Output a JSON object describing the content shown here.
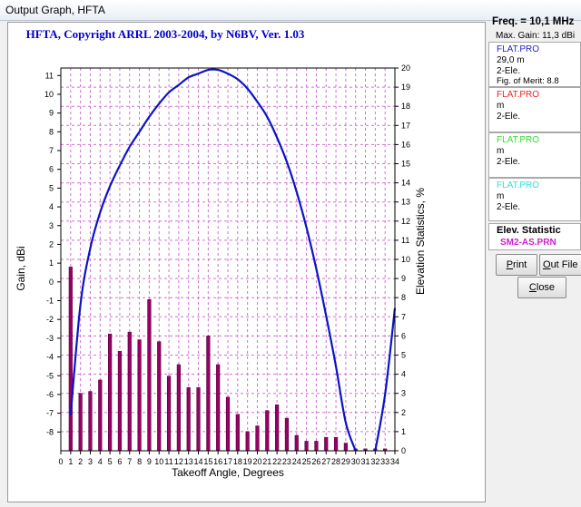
{
  "window": {
    "title": "Output Graph, HFTA"
  },
  "chart_data": {
    "type": "bar",
    "title": "HFTA, Copyright ARRL 2003-2004, by N6BV, Ver. 1.03",
    "xlabel": "Takeoff Angle, Degrees",
    "ylabel": "Gain, dBi",
    "y2label": "Elevation Statistics, %",
    "xlim": [
      0,
      34
    ],
    "ylim": [
      -9,
      11.4
    ],
    "y2lim": [
      0,
      20
    ],
    "grid": true,
    "x_ticks": [
      0,
      1,
      2,
      3,
      4,
      5,
      6,
      7,
      8,
      9,
      10,
      11,
      12,
      13,
      14,
      15,
      16,
      17,
      18,
      19,
      20,
      21,
      22,
      23,
      24,
      25,
      26,
      27,
      28,
      29,
      30,
      31,
      32,
      33,
      34
    ],
    "y_ticks": [
      -8,
      -7,
      -6,
      -5,
      -4,
      -3,
      -2,
      -1,
      0,
      1,
      2,
      3,
      4,
      5,
      6,
      7,
      8,
      9,
      10,
      11
    ],
    "y2_ticks": [
      0,
      1,
      2,
      3,
      4,
      5,
      6,
      7,
      8,
      9,
      10,
      11,
      12,
      13,
      14,
      15,
      16,
      17,
      18,
      19,
      20
    ],
    "colors": {
      "bars": "#990066",
      "curve": "#0a14c8",
      "grid": "#d070d0",
      "title": "#0000cc"
    },
    "bars": {
      "name": "SM2-AS.PRN",
      "x": [
        1,
        2,
        3,
        4,
        5,
        6,
        7,
        8,
        9,
        10,
        11,
        12,
        13,
        14,
        15,
        16,
        17,
        18,
        19,
        20,
        21,
        22,
        23,
        24,
        25,
        26,
        27,
        28,
        29,
        30,
        31,
        32,
        33
      ],
      "values": [
        9.6,
        3.0,
        3.1,
        3.7,
        6.1,
        5.2,
        6.2,
        5.8,
        7.9,
        5.7,
        3.9,
        4.5,
        3.3,
        3.3,
        6.0,
        4.5,
        2.8,
        1.9,
        1.0,
        1.3,
        2.1,
        2.4,
        1.7,
        0.8,
        0.5,
        0.5,
        0.7,
        0.7,
        0.4,
        0.1,
        0.1,
        0.1,
        0.1
      ]
    },
    "series": [
      {
        "name": "FLAT.PRO",
        "x": [
          1,
          2,
          3,
          4,
          5,
          6,
          7,
          8,
          9,
          10,
          11,
          12,
          13,
          14,
          15,
          16,
          17,
          18,
          19,
          20,
          21,
          22,
          23,
          24,
          25,
          26,
          27,
          28,
          29,
          30
        ],
        "values": [
          -7.1,
          -1.2,
          1.8,
          3.7,
          5.1,
          6.2,
          7.2,
          8.0,
          8.8,
          9.5,
          10.1,
          10.5,
          10.9,
          11.1,
          11.3,
          11.3,
          11.1,
          10.8,
          10.3,
          9.6,
          8.8,
          7.7,
          6.4,
          4.8,
          2.9,
          0.7,
          -1.8,
          -4.5,
          -7.5,
          -9.0
        ]
      },
      {
        "name": "FLAT.PRO",
        "x": [
          32,
          33,
          34
        ],
        "values": [
          -9.0,
          -6.0,
          -1.4
        ]
      }
    ]
  },
  "sidebar": {
    "freq": "Freq. = 10,1 MHz",
    "max_gain": "Max. Gain: 11,3 dBi",
    "entries": [
      {
        "file": "FLAT.PRO",
        "color": "#2222cc",
        "lines": [
          "29,0 m",
          "2-Ele.",
          "Fig. of Merit:  8.8"
        ]
      },
      {
        "file": "FLAT.PRO",
        "color": "#ee2222",
        "lines": [
          " m",
          "2-Ele."
        ]
      },
      {
        "file": "FLAT.PRO",
        "color": "#33dd33",
        "lines": [
          " m",
          "2-Ele."
        ]
      },
      {
        "file": "FLAT.PRO",
        "color": "#33dddd",
        "lines": [
          " m",
          "2-Ele."
        ]
      }
    ],
    "elev_title": "Elev. Statistic",
    "elev_file": "SM2-AS.PRN",
    "elev_color": "#cc22cc"
  },
  "buttons": {
    "print_first": "P",
    "print_rest": "rint",
    "outfile_first": "O",
    "outfile_rest": "ut File",
    "close_first": "C",
    "close_rest": "lose"
  }
}
